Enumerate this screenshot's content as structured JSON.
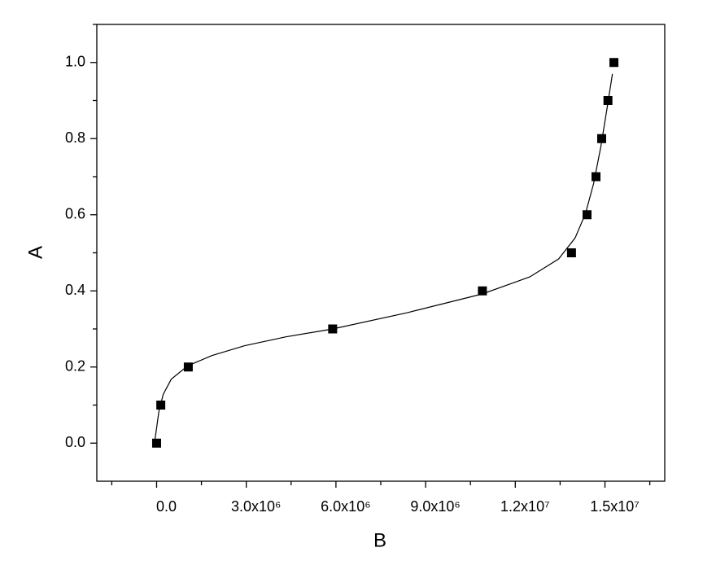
{
  "chart_data": {
    "type": "scatter",
    "x_label": "B",
    "y_label": "A",
    "xlim": [
      -2000000,
      17000000
    ],
    "ylim": [
      -0.1,
      1.1
    ],
    "xticks": [
      {
        "value": 0,
        "label": "0.0"
      },
      {
        "value": 3000000,
        "label": "3.0x10⁶"
      },
      {
        "value": 6000000,
        "label": "6.0x10⁶"
      },
      {
        "value": 9000000,
        "label": "9.0x10⁶"
      },
      {
        "value": 12000000,
        "label": "1.2x10⁷"
      },
      {
        "value": 15000000,
        "label": "1.5x10⁷"
      }
    ],
    "yticks": [
      {
        "value": 0,
        "label": "0.0"
      },
      0.2,
      0.4,
      0.6,
      0.8,
      {
        "value": 1,
        "label": "1.0"
      }
    ],
    "series": [
      {
        "color": "#000000",
        "marker": "square",
        "x": [
          0,
          140000,
          1060000,
          5890000,
          10900000,
          13880000,
          14400000,
          14700000,
          14890000,
          15100000,
          15300000
        ],
        "values": [
          0,
          0.1,
          0.2,
          0.3,
          0.4,
          0.5,
          0.6,
          0.7,
          0.8,
          0.9,
          1.0
        ]
      },
      {
        "color": "#000000",
        "marker": "line",
        "x": [
          -50000,
          80000,
          220000,
          490000,
          1040000,
          1850000,
          2950000,
          4310000,
          5890000,
          8400000,
          10900000,
          12490000,
          13450000,
          14000000,
          14350000,
          14620000,
          14860000,
          15080000,
          15250000
        ],
        "values": [
          0.011,
          0.085,
          0.128,
          0.168,
          0.203,
          0.23,
          0.256,
          0.279,
          0.3,
          0.343,
          0.392,
          0.437,
          0.484,
          0.539,
          0.603,
          0.682,
          0.778,
          0.885,
          0.97
        ]
      }
    ]
  }
}
